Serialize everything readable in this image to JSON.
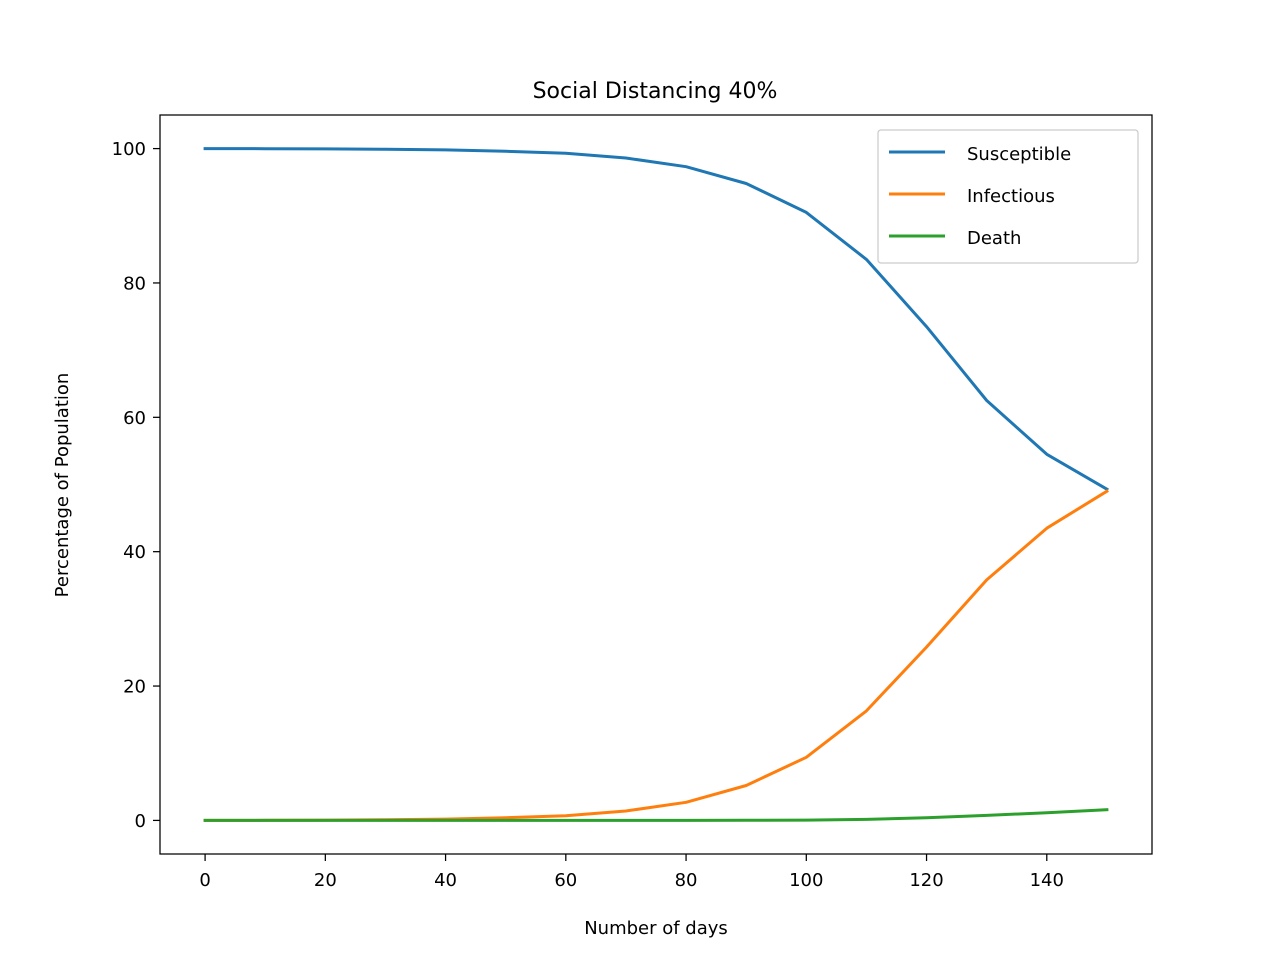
{
  "chart_data": {
    "type": "line",
    "title": "Social Distancing 40%",
    "xlabel": "Number of days",
    "ylabel": "Percentage of Population",
    "xlim": [
      -7.5,
      157.5
    ],
    "ylim": [
      -5,
      105
    ],
    "xticks": [
      0,
      20,
      40,
      60,
      80,
      100,
      120,
      140
    ],
    "yticks": [
      0,
      20,
      40,
      60,
      80,
      100
    ],
    "grid": false,
    "legend_position": "top-right",
    "x": [
      0,
      10,
      20,
      30,
      40,
      50,
      60,
      70,
      80,
      90,
      100,
      110,
      120,
      130,
      140,
      150
    ],
    "series": [
      {
        "name": "Susceptible",
        "color": "#1f77b4",
        "values": [
          100,
          99.98,
          99.95,
          99.9,
          99.8,
          99.6,
          99.3,
          98.6,
          97.3,
          94.8,
          90.5,
          83.5,
          73.5,
          62.5,
          54.5,
          49.3
        ]
      },
      {
        "name": "Infectious",
        "color": "#ff7f0e",
        "values": [
          0,
          0.02,
          0.05,
          0.1,
          0.2,
          0.4,
          0.7,
          1.4,
          2.7,
          5.2,
          9.4,
          16.3,
          25.8,
          35.8,
          43.5,
          49.0
        ]
      },
      {
        "name": "Death",
        "color": "#2ca02c",
        "values": [
          0,
          0,
          0,
          0,
          0,
          0,
          0,
          0,
          0,
          0.01,
          0.05,
          0.15,
          0.4,
          0.75,
          1.15,
          1.6
        ]
      }
    ]
  }
}
